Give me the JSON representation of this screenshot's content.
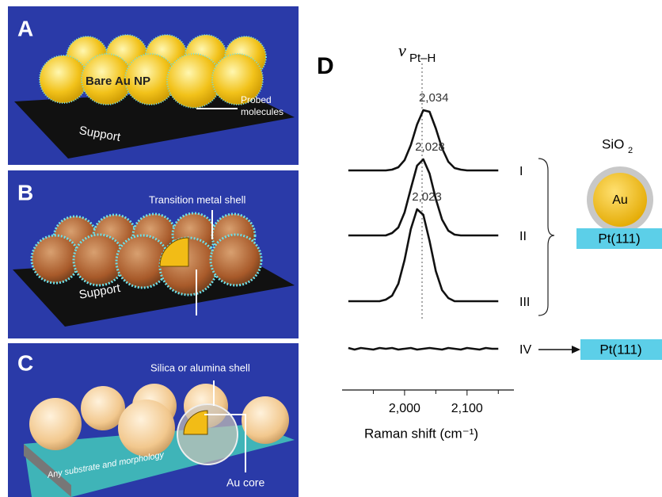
{
  "panels": {
    "A": {
      "letter": "A",
      "particle_label": "Bare Au NP",
      "probe_label": [
        "Probed",
        "molecules"
      ],
      "support_label": "Support"
    },
    "B": {
      "letter": "B",
      "shell_label": "Transition metal shell",
      "support_label": "Support"
    },
    "C": {
      "letter": "C",
      "shell_label": "Silica or alumina shell",
      "substrate_label": "Any substrate and morphology",
      "core_label": "Au core"
    }
  },
  "chart_data": {
    "type": "line",
    "letter": "D",
    "x_label": "Raman shift (cm⁻¹)",
    "reference_line": {
      "x": 2028,
      "symbol": "ν",
      "subscript": "Pt–H"
    },
    "x": [
      1910,
      1920,
      1930,
      1940,
      1950,
      1960,
      1970,
      1980,
      1990,
      2000,
      2010,
      2020,
      2030,
      2040,
      2050,
      2060,
      2070,
      2080,
      2090,
      2100,
      2110,
      2120,
      2130,
      2140,
      2150
    ],
    "xlim": [
      1900,
      2175
    ],
    "xticks": [
      {
        "value": 2000,
        "label": "2,000"
      },
      {
        "value": 2100,
        "label": "2,100"
      }
    ],
    "xminor_ticks": [
      1950,
      2050,
      2150
    ],
    "color": "#111111",
    "series": [
      {
        "name": "I",
        "peak": {
          "value": 2034,
          "label": "2,034"
        },
        "values": [
          0,
          0,
          0,
          0,
          0,
          0,
          0,
          0.01,
          0.04,
          0.13,
          0.32,
          0.58,
          0.76,
          0.74,
          0.53,
          0.28,
          0.11,
          0.03,
          0.01,
          0,
          0,
          0,
          0,
          0,
          0
        ]
      },
      {
        "name": "II",
        "peak": {
          "value": 2028,
          "label": "2,028"
        },
        "values": [
          0,
          0,
          0,
          0,
          0,
          0,
          0,
          0.03,
          0.1,
          0.29,
          0.59,
          0.88,
          0.96,
          0.78,
          0.46,
          0.2,
          0.06,
          0.01,
          0,
          0,
          0,
          0,
          0,
          0,
          0
        ]
      },
      {
        "name": "III",
        "peak": {
          "value": 2023,
          "label": "2,023"
        },
        "values": [
          0,
          0,
          0,
          0,
          0,
          0,
          0.02,
          0.07,
          0.22,
          0.52,
          0.91,
          1.16,
          1.09,
          0.76,
          0.38,
          0.14,
          0.04,
          0,
          0,
          0,
          0,
          0,
          0,
          0,
          0
        ]
      },
      {
        "name": "IV",
        "values": [
          0.01,
          -0.01,
          0.01,
          0,
          -0.01,
          0.01,
          0,
          0.01,
          -0.01,
          0,
          0.01,
          -0.01,
          0,
          0.01,
          0,
          -0.01,
          0.01,
          0,
          -0.01,
          0.01,
          0,
          -0.01,
          0.01,
          0,
          0
        ]
      }
    ],
    "schematic": {
      "shell_label": "SiO",
      "shell_subscript": "2",
      "core_label": "Au",
      "surface_label": "Pt(111)"
    }
  }
}
